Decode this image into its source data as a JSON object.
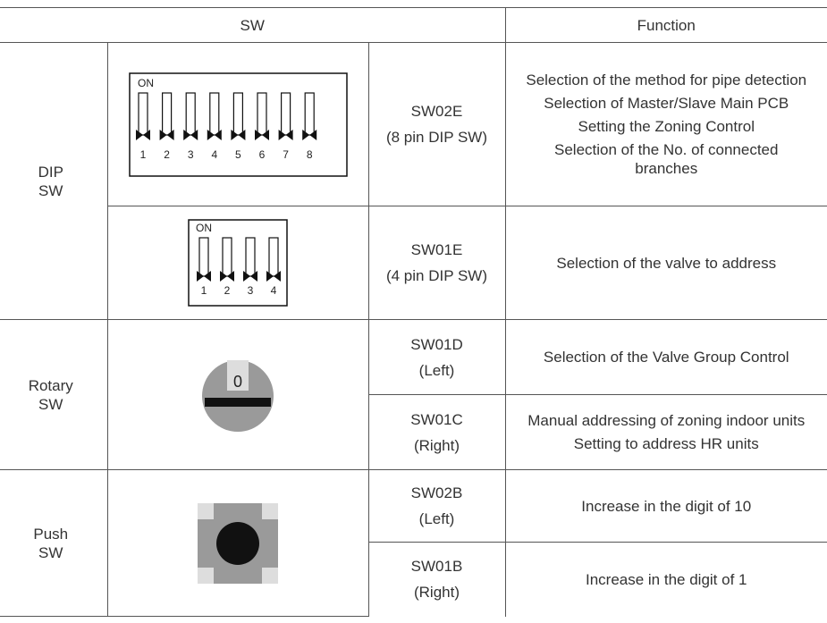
{
  "header": {
    "sw": "SW",
    "function": "Function"
  },
  "rows": [
    {
      "group": "DIP SW",
      "dip": {
        "on": "ON",
        "pins": [
          1,
          2,
          3,
          4,
          5,
          6,
          7,
          8
        ]
      },
      "name": "SW02E",
      "note": "(8 pin DIP SW)",
      "functions": [
        "Selection of the method for pipe detection",
        "Selection of Master/Slave Main PCB",
        "Setting the Zoning Control",
        "Selection of the No. of connected branches"
      ]
    },
    {
      "dip": {
        "on": "ON",
        "pins": [
          1,
          2,
          3,
          4
        ]
      },
      "name": "SW01E",
      "note": "(4 pin DIP SW)",
      "functions": [
        "Selection of the valve to address"
      ]
    },
    {
      "group": "Rotary SW",
      "rotary": {
        "label": "0"
      },
      "name": "SW01D",
      "note": "(Left)",
      "functions": [
        "Selection of the Valve Group Control"
      ]
    },
    {
      "name": "SW01C",
      "note": "(Right)",
      "functions": [
        "Manual addressing of zoning indoor units",
        "Setting to address HR units"
      ]
    },
    {
      "group": "Push SW",
      "name": "SW02B",
      "note": "(Left)",
      "functions": [
        "Increase in the digit of 10"
      ]
    },
    {
      "name": "SW01B",
      "note": "(Right)",
      "functions": [
        "Increase in the digit of 1"
      ]
    }
  ]
}
